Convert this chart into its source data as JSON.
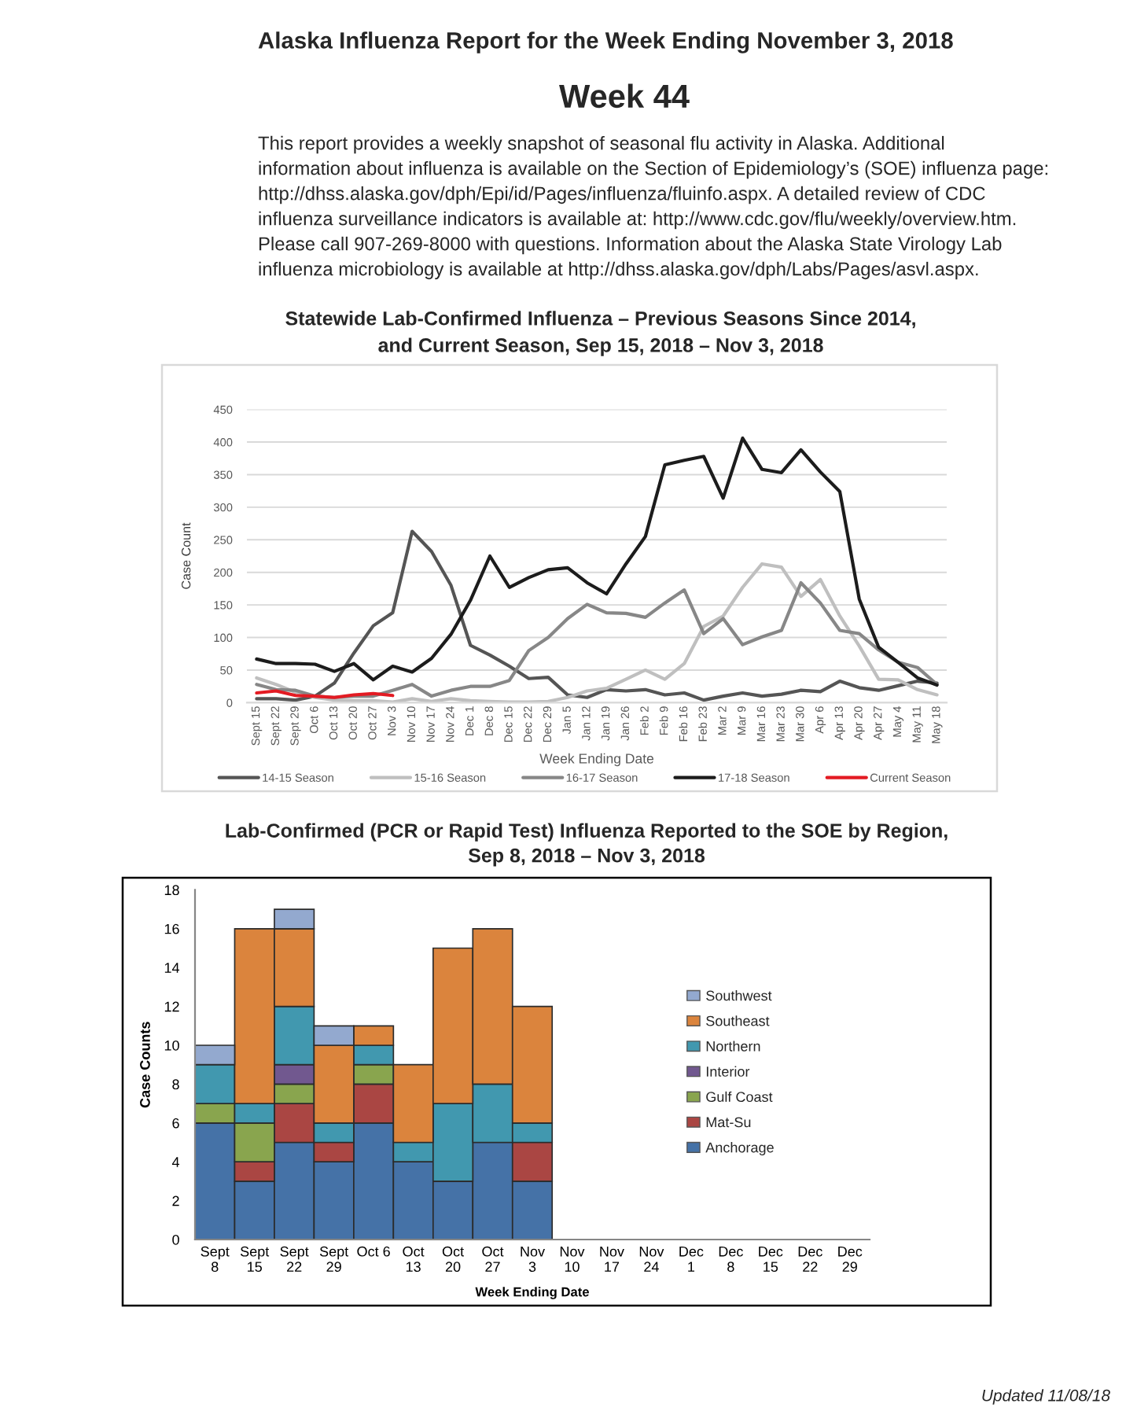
{
  "chart_data": [
    {
      "type": "other",
      "title": "Alaska Influenza Report for the Week Ending November 3, 2018",
      "subtitle": "Week 44",
      "annotations": [
        "This report provides a weekly snapshot of seasonal flu activity in Alaska. Additional",
        "information about influenza is available on the Section of Epidemiology’s (SOE) influenza page:",
        "http://dhss.alaska.gov/dph/Epi/id/Pages/influenza/fluinfo.aspx. A detailed review of CDC",
        "influenza surveillance indicators is available at: http://www.cdc.gov/flu/weekly/overview.htm.",
        "Please call 907-269-8000 with questions. Information about the Alaska State Virology Lab",
        "influenza microbiology is available at http://dhss.alaska.gov/dph/Labs/Pages/asvl.aspx."
      ]
    },
    {
      "type": "line",
      "title": "Statewide Lab-Confirmed Influenza – Previous Seasons Since 2014,\nand Current Season, Sep 15, 2018 – Nov 3, 2018",
      "xlabel": "Week Ending Date",
      "ylabel": "Case Count",
      "categories": [
        "Sept 15",
        "Sept 22",
        "Sept 29",
        "Oct 6",
        "Oct 13",
        "Oct 20",
        "Oct 27",
        "Nov 3",
        "Nov 10",
        "Nov 17",
        "Nov 24",
        "Dec 1",
        "Dec 8",
        "Dec 15",
        "Dec 22",
        "Dec 29",
        "Jan 5",
        "Jan 12",
        "Jan 19",
        "Jan 26",
        "Feb 2",
        "Feb 9",
        "Feb 16",
        "Feb 23",
        "Mar 2",
        "Mar 9",
        "Mar 16",
        "Mar 23",
        "Mar 30",
        "Apr 6",
        "Apr 13",
        "Apr 20",
        "Apr 27",
        "May 4",
        "May 11",
        "May 18"
      ],
      "series": [
        {
          "name": "14-15 Season",
          "color": "#555555",
          "values": [
            6,
            6,
            4,
            10,
            30,
            76,
            118,
            138,
            263,
            232,
            180,
            88,
            73,
            56,
            37,
            39,
            12,
            8,
            20,
            18,
            20,
            12,
            15,
            4,
            10,
            15,
            10,
            13,
            19,
            17,
            33,
            23,
            19,
            26,
            33,
            30
          ]
        },
        {
          "name": "15-16 Season",
          "color": "#bfbfbf",
          "values": [
            38,
            28,
            16,
            8,
            4,
            3,
            3,
            1,
            6,
            2,
            6,
            3,
            2,
            1,
            1,
            2,
            8,
            18,
            22,
            36,
            50,
            36,
            60,
            117,
            133,
            177,
            213,
            208,
            163,
            189,
            133,
            87,
            36,
            35,
            20,
            12
          ]
        },
        {
          "name": "16-17 Season",
          "color": "#878787",
          "values": [
            28,
            20,
            19,
            10,
            8,
            10,
            10,
            19,
            28,
            10,
            19,
            25,
            25,
            34,
            80,
            100,
            129,
            151,
            138,
            137,
            131,
            153,
            173,
            106,
            129,
            89,
            101,
            111,
            184,
            153,
            111,
            106,
            81,
            62,
            54,
            28
          ]
        },
        {
          "name": "17-18 Season",
          "color": "#1c1c1c",
          "values": [
            67,
            60,
            60,
            59,
            48,
            60,
            35,
            56,
            47,
            68,
            105,
            157,
            225,
            177,
            192,
            204,
            207,
            184,
            167,
            213,
            255,
            365,
            372,
            378,
            314,
            406,
            358,
            353,
            388,
            354,
            324,
            159,
            85,
            62,
            38,
            27
          ]
        },
        {
          "name": "Current Season",
          "color": "#e31b23",
          "values": [
            15,
            18,
            11,
            10,
            8,
            12,
            14,
            11,
            null,
            null,
            null,
            null,
            null,
            null,
            null,
            null,
            null,
            null,
            null,
            null,
            null,
            null,
            null,
            null,
            null,
            null,
            null,
            null,
            null,
            null,
            null,
            null,
            null,
            null,
            null,
            null
          ]
        }
      ],
      "ylim": [
        0,
        450
      ],
      "yticks": [
        0,
        50,
        100,
        150,
        200,
        250,
        300,
        350,
        400,
        450
      ],
      "grid": "y",
      "legend": "bottom"
    },
    {
      "type": "bar",
      "stacked": true,
      "title": "Lab-Confirmed (PCR or Rapid Test) Influenza Reported to the SOE by Region,\nSep 8, 2018 – Nov 3, 2018",
      "xlabel": "Week Ending Date",
      "ylabel": "Case Counts",
      "categories": [
        "Sept\n8",
        "Sept\n15",
        "Sept\n22",
        "Sept\n29",
        "Oct 6",
        "Oct\n13",
        "Oct\n20",
        "Oct\n27",
        "Nov\n3",
        "Nov\n10",
        "Nov\n17",
        "Nov\n24",
        "Dec\n1",
        "Dec\n8",
        "Dec\n15",
        "Dec\n22",
        "Dec\n29"
      ],
      "series": [
        {
          "name": "Anchorage",
          "color": "#4572a7",
          "values": [
            6,
            3,
            5,
            4,
            6,
            4,
            3,
            5,
            3,
            null,
            null,
            null,
            null,
            null,
            null,
            null,
            null
          ]
        },
        {
          "name": "Mat-Su",
          "color": "#aa4643",
          "values": [
            0,
            1,
            2,
            1,
            2,
            0,
            0,
            0,
            2,
            null,
            null,
            null,
            null,
            null,
            null,
            null,
            null
          ]
        },
        {
          "name": "Gulf Coast",
          "color": "#89a54e",
          "values": [
            1,
            2,
            1,
            0,
            1,
            0,
            0,
            0,
            0,
            null,
            null,
            null,
            null,
            null,
            null,
            null,
            null
          ]
        },
        {
          "name": "Interior",
          "color": "#71588f",
          "values": [
            0,
            0,
            1,
            0,
            0,
            0,
            0,
            0,
            0,
            null,
            null,
            null,
            null,
            null,
            null,
            null,
            null
          ]
        },
        {
          "name": "Northern",
          "color": "#4198af",
          "values": [
            2,
            1,
            3,
            1,
            1,
            1,
            4,
            3,
            1,
            null,
            null,
            null,
            null,
            null,
            null,
            null,
            null
          ]
        },
        {
          "name": "Southeast",
          "color": "#db843d",
          "values": [
            0,
            9,
            4,
            4,
            1,
            4,
            8,
            8,
            6,
            null,
            null,
            null,
            null,
            null,
            null,
            null,
            null
          ]
        },
        {
          "name": "Southwest",
          "color": "#93a9cf",
          "values": [
            1,
            0,
            1,
            1,
            0,
            0,
            0,
            0,
            0,
            null,
            null,
            null,
            null,
            null,
            null,
            null,
            null
          ]
        }
      ],
      "ylim": [
        0,
        18
      ],
      "yticks": [
        0,
        2,
        4,
        6,
        8,
        10,
        12,
        14,
        16,
        18
      ],
      "legend": "right",
      "annotations": [
        "Updated 11/08/18"
      ]
    }
  ]
}
